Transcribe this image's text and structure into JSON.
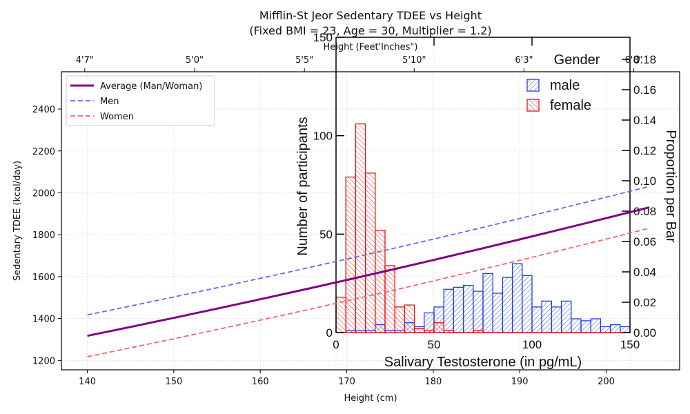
{
  "chart_data": [
    {
      "type": "line",
      "title": "Mifflin-St Jeor Sedentary TDEE vs Height",
      "subtitle": "(Fixed BMI = 23, Age = 30, Multiplier = 1.2)",
      "xlabel": "Height (cm)",
      "ylabel": "Sedentary TDEE (kcal/day)",
      "secondary_xlabel": "Height (Feet'Inches\")",
      "xlim": [
        137,
        208.5
      ],
      "ylim": [
        1155,
        2578
      ],
      "xticks": [
        140,
        150,
        160,
        170,
        180,
        190,
        200
      ],
      "yticks": [
        1200,
        1400,
        1600,
        1800,
        2000,
        2200,
        2400
      ],
      "secondary_xticks": [
        {
          "cm": 139.7,
          "label": "4'7\""
        },
        {
          "cm": 152.4,
          "label": "5'0\""
        },
        {
          "cm": 165.1,
          "label": "5'5\""
        },
        {
          "cm": 177.8,
          "label": "5'10\""
        },
        {
          "cm": 190.5,
          "label": "6'3\""
        },
        {
          "cm": 203.2,
          "label": "6'8\""
        }
      ],
      "grid": true,
      "legend_position": "top-left",
      "x": [
        140,
        145,
        150,
        155,
        160,
        165,
        170,
        175,
        180,
        185,
        190,
        195,
        200,
        205
      ],
      "series": [
        {
          "name": "Average (Man/Woman)",
          "color": "#800080",
          "style": "solid",
          "values": [
            1317.5,
            1359.9,
            1403.1,
            1447.1,
            1491.9,
            1537.5,
            1583.9,
            1631.1,
            1679.1,
            1727.9,
            1777.5,
            1827.9,
            1879.1,
            1931.1
          ]
        },
        {
          "name": "Men",
          "color": "#6666ee",
          "style": "dashed",
          "values": [
            1417.3,
            1459.7,
            1502.9,
            1546.9,
            1591.7,
            1637.3,
            1683.7,
            1730.9,
            1778.9,
            1827.7,
            1877.3,
            1927.7,
            1978.9,
            2030.9
          ]
        },
        {
          "name": "Women",
          "color": "#f26666",
          "style": "dashed",
          "values": [
            1217.7,
            1260.1,
            1303.3,
            1347.3,
            1392.1,
            1437.7,
            1484.1,
            1531.3,
            1579.3,
            1628.1,
            1677.7,
            1728.1,
            1779.3,
            1831.3
          ]
        }
      ]
    },
    {
      "type": "bar",
      "subtype": "histogram",
      "xlabel": "Salivary Testosterone (in pg/mL)",
      "ylabel": "Number of participants",
      "y2label": "Proportion per Bar",
      "xlim": [
        0,
        150
      ],
      "ylim": [
        0,
        150
      ],
      "y2lim": [
        0,
        0.18
      ],
      "xticks": [
        0,
        50,
        100,
        150
      ],
      "yticks": [
        0,
        50,
        100,
        150
      ],
      "y2ticks": [
        "0.00",
        "0.02",
        "0.04",
        "0.06",
        "0.08",
        "0.10",
        "0.12",
        "0.14",
        "0.16",
        "0.18"
      ],
      "legend_title": "Gender",
      "legend_position": "top-right",
      "bin_width": 5,
      "bins": [
        0,
        5,
        10,
        15,
        20,
        25,
        30,
        35,
        40,
        45,
        50,
        55,
        60,
        65,
        70,
        75,
        80,
        85,
        90,
        95,
        100,
        105,
        110,
        115,
        120,
        125,
        130,
        135,
        140,
        145
      ],
      "series": [
        {
          "name": "male",
          "color": "#1f3fe0",
          "hatch": "forward",
          "values": [
            0,
            1,
            1,
            1,
            4,
            1,
            1,
            5,
            3,
            10,
            13,
            22,
            23,
            24,
            21,
            30,
            20,
            28,
            35,
            29,
            13,
            16,
            13,
            16,
            7,
            6,
            7,
            3,
            4,
            3
          ]
        },
        {
          "name": "female",
          "color": "#ee1111",
          "hatch": "backward",
          "values": [
            18,
            79,
            106,
            81,
            52,
            34,
            13,
            14,
            2,
            1,
            5,
            1,
            0,
            0,
            1,
            0,
            0,
            0,
            0,
            0,
            0,
            0,
            0,
            0,
            0,
            0,
            0,
            0,
            0,
            0
          ]
        }
      ]
    }
  ]
}
